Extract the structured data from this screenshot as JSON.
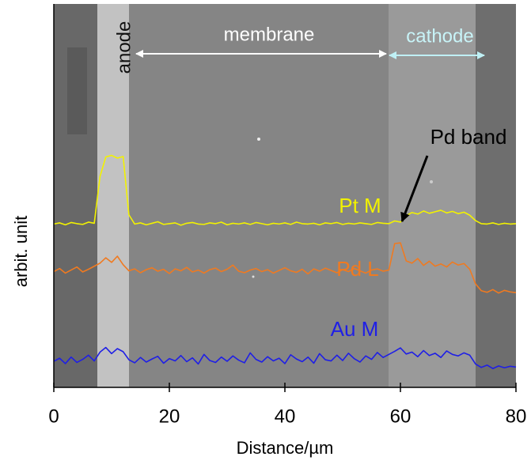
{
  "chart_data": {
    "type": "line",
    "xlabel": "Distance/µm",
    "ylabel": "arbit. unit",
    "xlim": [
      0,
      80
    ],
    "xticks": [
      0,
      20,
      40,
      60,
      80
    ],
    "ylim": [
      0,
      100
    ],
    "annotations": [
      "anode",
      "membrane",
      "cathode",
      "Pd band"
    ],
    "x": [
      0,
      1,
      2,
      3,
      4,
      5,
      6,
      7,
      8,
      9,
      10,
      11,
      12,
      13,
      14,
      15,
      16,
      17,
      18,
      19,
      20,
      21,
      22,
      23,
      24,
      25,
      26,
      27,
      28,
      29,
      30,
      31,
      32,
      33,
      34,
      35,
      36,
      37,
      38,
      39,
      40,
      41,
      42,
      43,
      44,
      45,
      46,
      47,
      48,
      49,
      50,
      51,
      52,
      53,
      54,
      55,
      56,
      57,
      58,
      59,
      60,
      61,
      62,
      63,
      64,
      65,
      66,
      67,
      68,
      69,
      70,
      71,
      72,
      73,
      74,
      75,
      76,
      77,
      78,
      79,
      80
    ],
    "series": [
      {
        "name": "Pt M",
        "color": "#f2f200",
        "values": [
          42.6,
          42.9,
          42.4,
          43.0,
          42.7,
          42.5,
          43.1,
          42.8,
          55.0,
          60.1,
          60.5,
          59.8,
          60.2,
          45.0,
          42.6,
          42.9,
          42.4,
          42.8,
          43.2,
          42.5,
          42.7,
          42.9,
          42.3,
          42.8,
          43.0,
          42.6,
          42.5,
          42.9,
          42.7,
          43.1,
          42.4,
          42.8,
          42.6,
          42.9,
          42.5,
          43.0,
          42.7,
          42.4,
          42.8,
          42.6,
          42.9,
          42.5,
          43.1,
          42.7,
          42.6,
          42.8,
          42.4,
          42.9,
          42.7,
          43.0,
          42.5,
          42.8,
          42.6,
          42.9,
          42.7,
          42.5,
          43.0,
          42.8,
          42.7,
          43.4,
          43.1,
          44.8,
          45.6,
          45.2,
          46.0,
          45.4,
          45.8,
          46.2,
          45.5,
          45.9,
          45.3,
          45.7,
          44.9,
          43.5,
          42.7,
          42.6,
          42.9,
          42.5,
          42.8,
          42.6,
          42.7
        ]
      },
      {
        "name": "Pd L",
        "color": "#f07a20",
        "values": [
          30.2,
          31.0,
          29.8,
          30.6,
          31.4,
          30.1,
          30.8,
          31.6,
          32.4,
          33.8,
          32.6,
          34.2,
          32.0,
          30.4,
          30.9,
          29.9,
          30.7,
          31.2,
          30.3,
          30.8,
          29.7,
          30.9,
          30.4,
          31.3,
          30.1,
          30.6,
          29.8,
          30.7,
          31.1,
          30.2,
          30.8,
          31.9,
          30.3,
          29.9,
          30.6,
          31.0,
          30.2,
          30.7,
          29.8,
          30.5,
          31.2,
          30.4,
          30.0,
          30.8,
          29.6,
          30.9,
          30.3,
          31.1,
          30.5,
          29.9,
          30.7,
          30.2,
          31.0,
          30.4,
          29.8,
          30.6,
          30.9,
          30.3,
          30.6,
          37.5,
          37.7,
          33.0,
          32.4,
          33.6,
          31.8,
          32.9,
          31.6,
          32.2,
          31.4,
          32.7,
          31.9,
          32.3,
          30.8,
          27.0,
          25.2,
          24.8,
          25.5,
          24.6,
          25.3,
          24.9,
          24.7
        ]
      },
      {
        "name": "Au M",
        "color": "#1f1fe6",
        "values": [
          6.8,
          7.6,
          6.2,
          7.9,
          6.5,
          7.3,
          8.4,
          6.9,
          9.2,
          10.4,
          8.8,
          10.1,
          9.3,
          7.2,
          6.4,
          7.8,
          6.6,
          7.4,
          8.1,
          6.3,
          7.5,
          6.9,
          8.3,
          6.7,
          7.7,
          6.1,
          8.6,
          7.0,
          6.5,
          7.9,
          6.8,
          8.2,
          7.1,
          6.4,
          9.0,
          7.3,
          6.6,
          8.0,
          6.9,
          7.6,
          6.2,
          8.5,
          7.4,
          6.7,
          7.9,
          6.3,
          8.8,
          7.2,
          6.9,
          8.4,
          7.0,
          8.9,
          7.5,
          6.6,
          8.2,
          7.3,
          9.1,
          7.8,
          8.6,
          9.4,
          10.3,
          8.7,
          9.2,
          8.0,
          9.6,
          8.3,
          8.9,
          7.8,
          9.5,
          8.6,
          8.2,
          9.0,
          8.4,
          6.1,
          5.2,
          5.8,
          4.9,
          5.6,
          5.1,
          5.5,
          5.3
        ]
      }
    ]
  }
}
